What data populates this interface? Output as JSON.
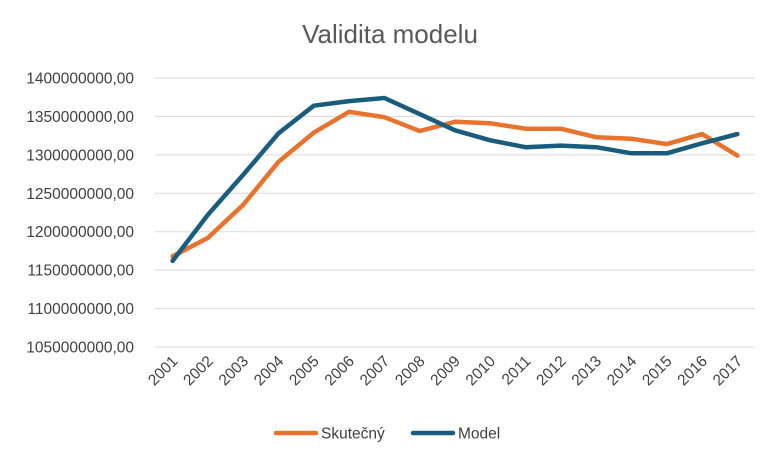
{
  "chart_data": {
    "type": "line",
    "title": "Validita modelu",
    "xlabel": "",
    "ylabel": "",
    "x": [
      "2001",
      "2002",
      "2003",
      "2004",
      "2005",
      "2006",
      "2007",
      "2008",
      "2009",
      "2010",
      "2011",
      "2012",
      "2013",
      "2014",
      "2015",
      "2016",
      "2017"
    ],
    "y_ticks": [
      "1050000000,00",
      "1100000000,00",
      "1150000000,00",
      "1200000000,00",
      "1250000000,00",
      "1300000000,00",
      "1350000000,00",
      "1400000000,00"
    ],
    "ylim": [
      1050000000,
      1400000000
    ],
    "grid": true,
    "legend_position": "bottom",
    "series": [
      {
        "name": "Skutečný",
        "color": "#E8732E",
        "values": [
          1168000000,
          1192000000,
          1235000000,
          1291000000,
          1329000000,
          1356000000,
          1349000000,
          1331000000,
          1343000000,
          1341000000,
          1334000000,
          1334000000,
          1323000000,
          1321000000,
          1314000000,
          1327000000,
          1299000000
        ]
      },
      {
        "name": "Model",
        "color": "#195C7E",
        "values": [
          1162000000,
          1222000000,
          1274000000,
          1328000000,
          1364000000,
          1370000000,
          1374000000,
          1353000000,
          1332000000,
          1319000000,
          1310000000,
          1312000000,
          1310000000,
          1302000000,
          1302000000,
          1315000000,
          1327000000
        ]
      }
    ]
  }
}
